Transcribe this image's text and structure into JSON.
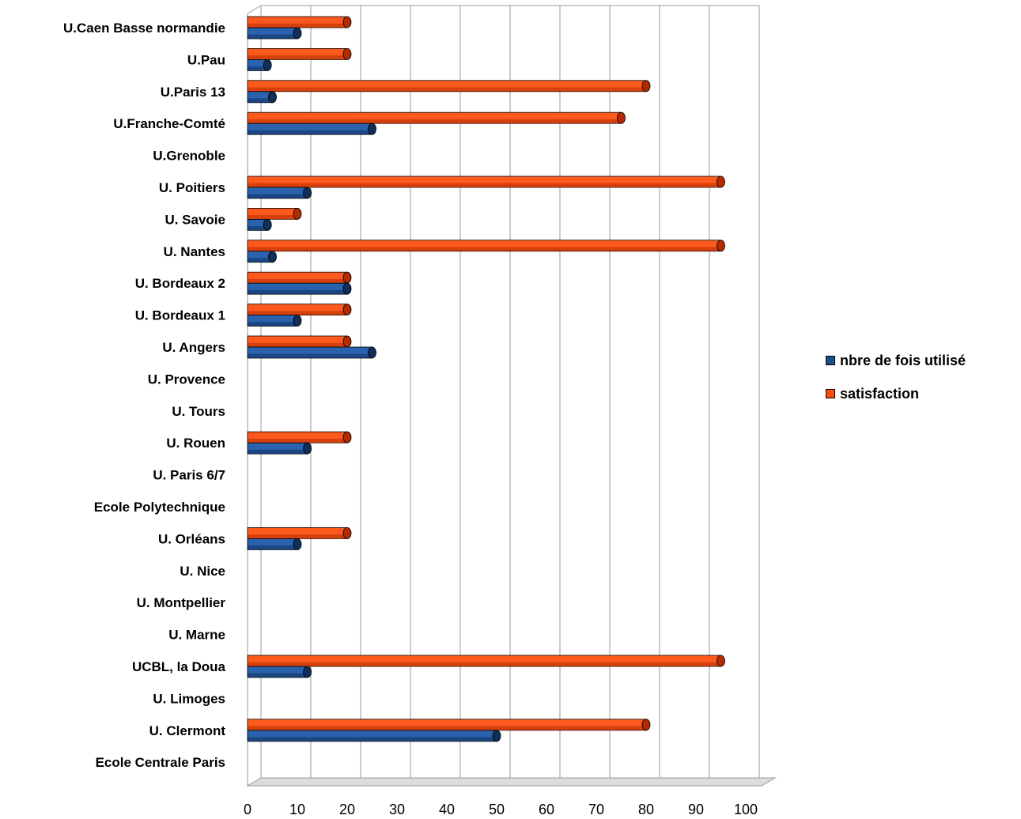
{
  "chart_data": {
    "type": "bar",
    "orientation": "horizontal",
    "categories": [
      "U.Caen Basse normandie",
      "U.Pau",
      "U.Paris 13",
      "U.Franche-Comté",
      "U.Grenoble",
      "U. Poitiers",
      "U. Savoie",
      "U. Nantes",
      "U. Bordeaux 2",
      "U. Bordeaux 1",
      "U. Angers",
      "U. Provence",
      "U. Tours",
      "U. Rouen",
      "U. Paris 6/7",
      "Ecole Polytechnique",
      "U. Orléans",
      "U. Nice",
      "U. Montpellier",
      "U. Marne",
      "UCBL, la Doua",
      "U. Limoges",
      "U. Clermont",
      "Ecole Centrale Paris"
    ],
    "series": [
      {
        "name": "nbre de fois utilisé",
        "color": "#1f4e8c",
        "values": [
          10,
          4,
          5,
          25,
          0,
          12,
          4,
          5,
          20,
          10,
          25,
          0,
          0,
          12,
          0,
          0,
          10,
          0,
          0,
          0,
          12,
          0,
          50,
          0
        ]
      },
      {
        "name": "satisfaction",
        "color": "#ff4a0a",
        "values": [
          20,
          20,
          80,
          75,
          0,
          95,
          10,
          95,
          20,
          20,
          20,
          0,
          0,
          20,
          0,
          0,
          20,
          0,
          0,
          0,
          95,
          0,
          80,
          0
        ]
      }
    ],
    "x_ticks": [
      "0",
      "10",
      "20",
      "30",
      "40",
      "50",
      "60",
      "70",
      "80",
      "90",
      "100"
    ],
    "xlim": [
      0,
      100
    ],
    "grid": true,
    "legend_position": "right"
  }
}
